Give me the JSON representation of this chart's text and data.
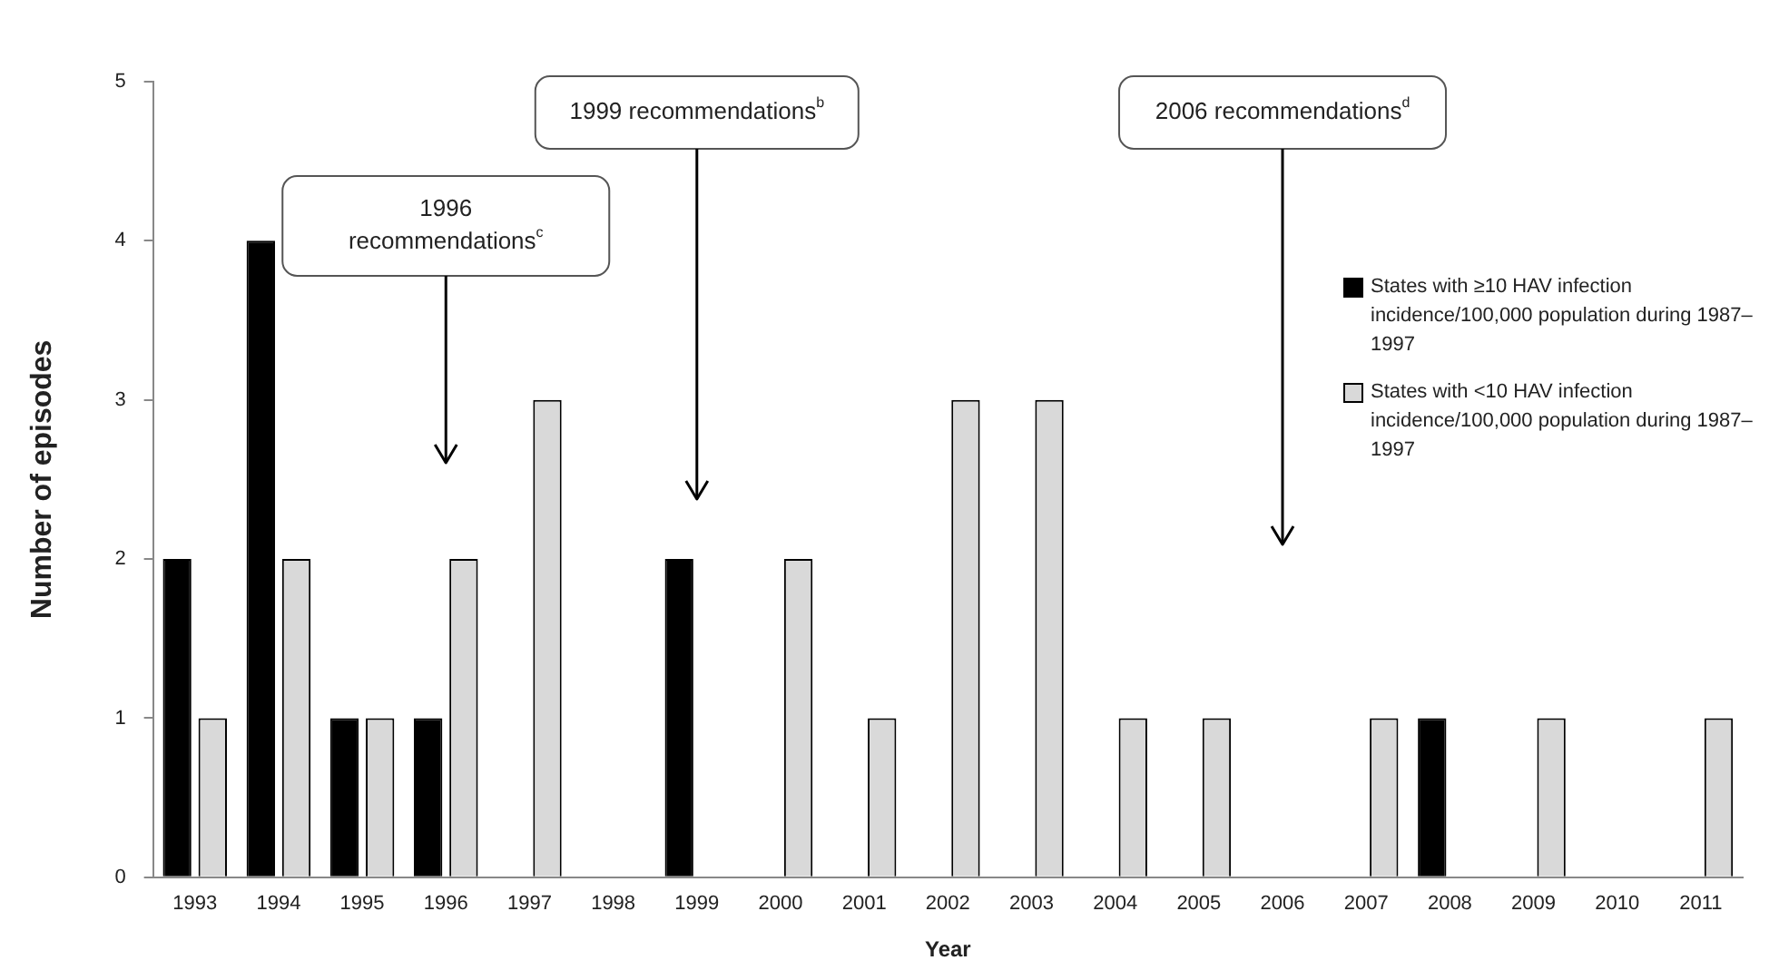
{
  "chart_data": {
    "type": "bar",
    "xlabel": "Year",
    "ylabel": "Number of episodes",
    "categories": [
      "1993",
      "1994",
      "1995",
      "1996",
      "1997",
      "1998",
      "1999",
      "2000",
      "2001",
      "2002",
      "2003",
      "2004",
      "2005",
      "2006",
      "2007",
      "2008",
      "2009",
      "2010",
      "2011"
    ],
    "series": [
      {
        "name": "States with ≥10 HAV infection incidence/100,000 population during 1987–1997",
        "color": "#000000",
        "values": [
          2,
          4,
          1,
          1,
          0,
          0,
          2,
          0,
          0,
          0,
          0,
          0,
          0,
          0,
          0,
          1,
          0,
          0,
          0
        ]
      },
      {
        "name": "States with <10 HAV infection incidence/100,000 population during 1987–1997",
        "color": "#d9d9d9",
        "values": [
          1,
          2,
          1,
          2,
          3,
          0,
          0,
          2,
          1,
          3,
          3,
          1,
          1,
          0,
          1,
          0,
          1,
          0,
          1
        ]
      }
    ],
    "ylim": [
      0,
      5
    ],
    "yticks": [
      0,
      1,
      2,
      3,
      4,
      5
    ],
    "grid": false,
    "legend": "right",
    "annotations": [
      "1996 recommendations$^{c}$",
      "1999 recommendations$^{b}$",
      "2006 recommendations$^{d}$"
    ]
  }
}
